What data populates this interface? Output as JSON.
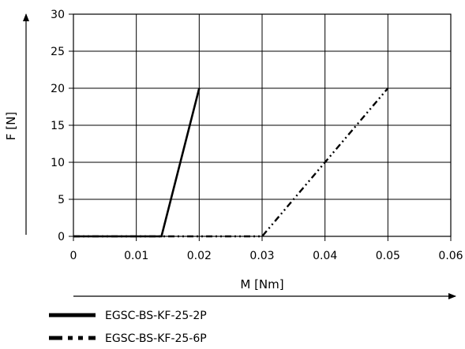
{
  "chart_data": {
    "type": "line",
    "xlabel": "M [Nm]",
    "ylabel": "F [N]",
    "xlim": [
      0,
      0.06
    ],
    "ylim": [
      0,
      30
    ],
    "xticks": [
      0,
      0.01,
      0.02,
      0.03,
      0.04,
      0.05,
      0.06
    ],
    "xtick_labels": [
      "0",
      "0.01",
      "0.02",
      "0.03",
      "0.04",
      "0.05",
      "0.06"
    ],
    "yticks": [
      0,
      5,
      10,
      15,
      20,
      25,
      30
    ],
    "ytick_labels": [
      "0",
      "5",
      "10",
      "15",
      "20",
      "25",
      "30"
    ],
    "grid": true,
    "legend_position": "bottom-left",
    "series": [
      {
        "name": "EGSC-BS-KF-25-2P",
        "line_style": "solid",
        "x": [
          0,
          0.014,
          0.02
        ],
        "y": [
          0,
          0,
          20
        ]
      },
      {
        "name": "EGSC-BS-KF-25-6P",
        "line_style": "dash-dot-dot",
        "x": [
          0,
          0.03,
          0.05
        ],
        "y": [
          0,
          0,
          20
        ]
      }
    ]
  }
}
